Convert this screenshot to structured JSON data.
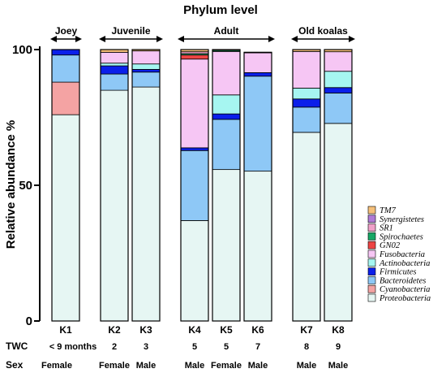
{
  "chart_data": {
    "type": "bar",
    "stacked": true,
    "title": "Phylum level",
    "ylabel": "Relative abundance %",
    "ylim": [
      0,
      100
    ],
    "yticks": [
      0,
      50,
      100
    ],
    "categories": [
      "K1",
      "K2",
      "K3",
      "K4",
      "K5",
      "K6",
      "K7",
      "K8"
    ],
    "groups": [
      {
        "label": "Joey",
        "members": [
          "K1"
        ]
      },
      {
        "label": "Juvenile",
        "members": [
          "K2",
          "K3"
        ]
      },
      {
        "label": "Adult",
        "members": [
          "K4",
          "K5",
          "K6"
        ]
      },
      {
        "label": "Old koalas",
        "members": [
          "K7",
          "K8"
        ]
      }
    ],
    "rows": [
      {
        "label": "TWC",
        "values": [
          "< 9  months",
          "2",
          "3",
          "5",
          "5",
          "7",
          "8",
          "9"
        ]
      },
      {
        "label": "Sex",
        "values": [
          "Female",
          "Female",
          "Male",
          "Male",
          "Female",
          "Male",
          "Male",
          "Male"
        ]
      }
    ],
    "legend_position": "bottom-right",
    "series": [
      {
        "name": "Proteobacteria",
        "color": "#e6f6f3",
        "values": [
          76,
          85,
          86.2,
          37,
          55.8,
          55.2,
          69.5,
          72.8
        ]
      },
      {
        "name": "Cyanobacteria",
        "color": "#f4a3a3",
        "values": [
          12,
          0,
          0,
          0,
          0,
          0,
          0,
          0
        ]
      },
      {
        "name": "Bacteroidetes",
        "color": "#8ec8f6",
        "values": [
          10,
          6,
          5.5,
          25.8,
          18.5,
          35,
          9.3,
          11.2
        ]
      },
      {
        "name": "Firmicutes",
        "color": "#0b1fea",
        "values": [
          2,
          3,
          1,
          1,
          2,
          1.3,
          3,
          2
        ]
      },
      {
        "name": "Actinobacteria",
        "color": "#a6f6f1",
        "values": [
          0,
          1,
          2,
          0,
          7,
          0,
          4,
          6
        ]
      },
      {
        "name": "Fusobacteria",
        "color": "#f6c6f4",
        "values": [
          0,
          4,
          4.8,
          32.7,
          16,
          7.3,
          13.5,
          7.2
        ]
      },
      {
        "name": "GN02",
        "color": "#ee4444",
        "values": [
          0,
          0,
          0,
          1.5,
          0,
          0,
          0,
          0
        ]
      },
      {
        "name": "Spirochaetes",
        "color": "#18a866",
        "values": [
          0,
          0,
          0,
          0.5,
          0.4,
          0,
          0,
          0
        ]
      },
      {
        "name": "SR1",
        "color": "#f0a0c8",
        "values": [
          0,
          0,
          0,
          0.7,
          0,
          0,
          0,
          0
        ]
      },
      {
        "name": "Synergistetes",
        "color": "#b07ad6",
        "values": [
          0,
          0,
          0,
          0,
          0,
          0,
          0,
          0
        ]
      },
      {
        "name": "TM7",
        "color": "#f6c07a",
        "values": [
          0,
          1,
          0.5,
          0.8,
          0.3,
          0.2,
          0.7,
          0.8
        ]
      }
    ]
  }
}
